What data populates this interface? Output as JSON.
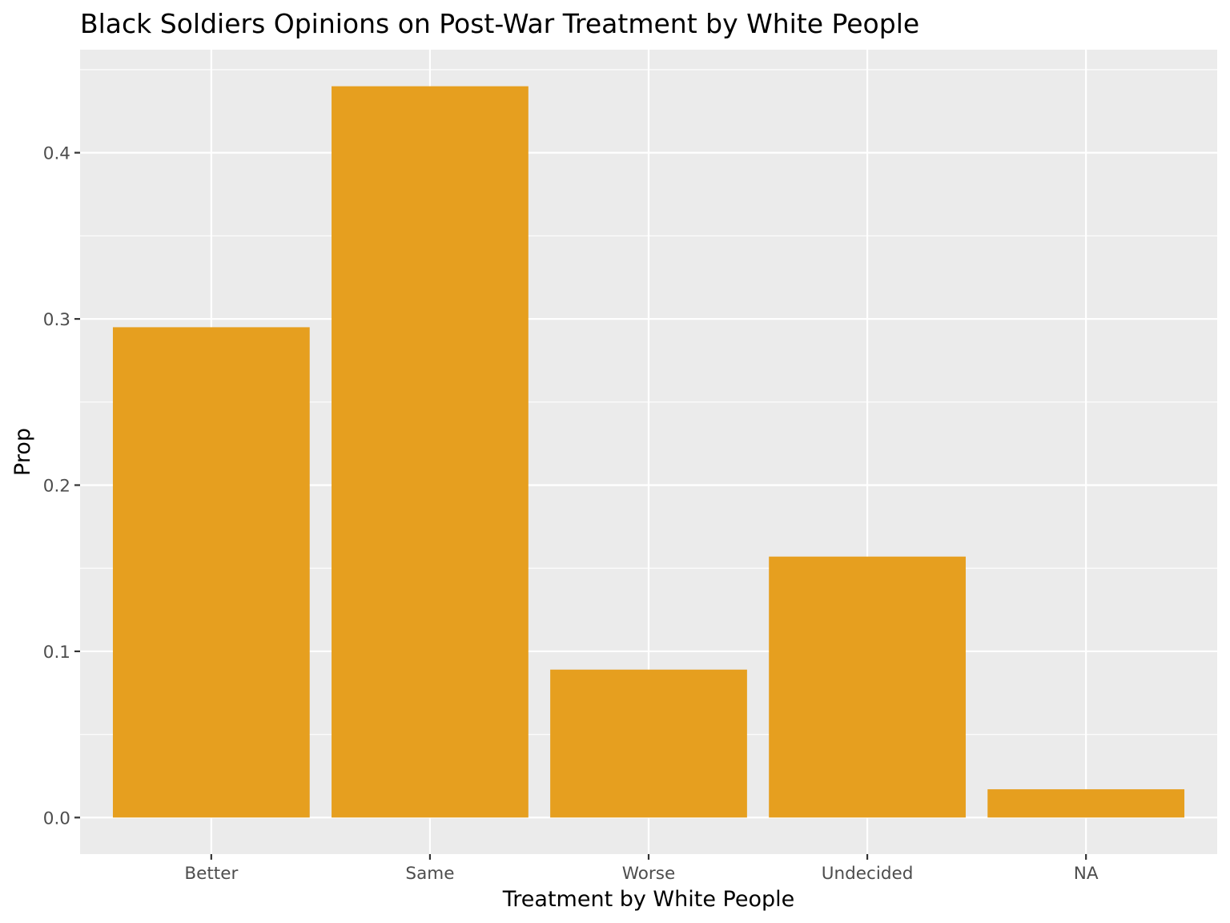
{
  "chart_data": {
    "type": "bar",
    "title": "Black Soldiers Opinions on Post-War Treatment by White People",
    "xlabel": "Treatment by White People",
    "ylabel": "Prop",
    "categories": [
      "Better",
      "Same",
      "Worse",
      "Undecided",
      "NA"
    ],
    "values": [
      0.295,
      0.44,
      0.089,
      0.157,
      0.017
    ],
    "ylim": [
      -0.022,
      0.462
    ],
    "y_ticks": [
      0.0,
      0.1,
      0.2,
      0.3,
      0.4
    ],
    "y_tick_labels": [
      "0.0",
      "0.1",
      "0.2",
      "0.3",
      "0.4"
    ],
    "grid": true,
    "legend": "none",
    "colors": {
      "bar": "#E69F1F",
      "panel_background": "#EBEBEB",
      "gridline": "#FFFFFF",
      "tick_text": "#4D4D4D",
      "tick_mark": "#333333"
    }
  }
}
